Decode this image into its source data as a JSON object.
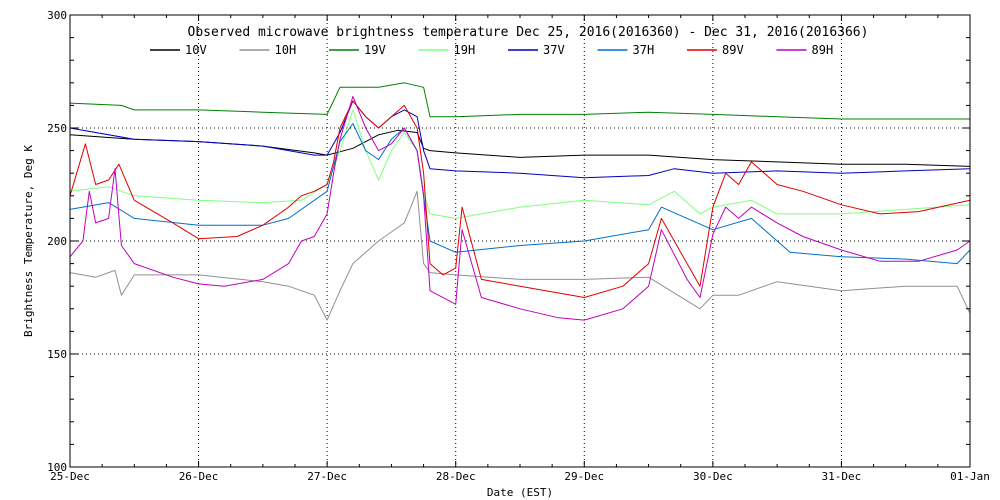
{
  "chart_data": {
    "type": "line",
    "title": "Observed microwave brightness temperature Dec 25, 2016(2016360) - Dec 31, 2016(2016366)",
    "xlabel": "Date (EST)",
    "ylabel": "Brightness Temperature, Deg K",
    "x_ticks": [
      "25-Dec",
      "26-Dec",
      "27-Dec",
      "28-Dec",
      "29-Dec",
      "30-Dec",
      "31-Dec",
      "01-Jan"
    ],
    "xlim": [
      0,
      7
    ],
    "ylim": [
      100,
      300
    ],
    "y_ticks": [
      100,
      150,
      200,
      250,
      300
    ],
    "grid": true,
    "legend_position": "top",
    "series": [
      {
        "name": "10V",
        "color": "#000000",
        "x": [
          0,
          0.5,
          1.0,
          1.5,
          1.9,
          2.0,
          2.2,
          2.4,
          2.55,
          2.7,
          2.75,
          2.8,
          3.0,
          3.5,
          4.0,
          4.5,
          5.0,
          5.5,
          6.0,
          6.5,
          7.0
        ],
        "y": [
          247,
          245,
          244,
          242,
          239,
          238,
          241,
          247,
          249,
          248,
          241,
          240,
          239,
          237,
          238,
          238,
          236,
          235,
          234,
          234,
          233
        ]
      },
      {
        "name": "10H",
        "color": "#909090",
        "x": [
          0,
          0.2,
          0.35,
          0.4,
          0.5,
          1.0,
          1.5,
          1.7,
          1.9,
          2.0,
          2.1,
          2.2,
          2.4,
          2.6,
          2.7,
          2.75,
          2.8,
          3.0,
          3.5,
          4.0,
          4.5,
          4.9,
          5.0,
          5.2,
          5.5,
          6.0,
          6.5,
          6.9,
          7.0
        ],
        "y": [
          186,
          184,
          187,
          176,
          185,
          185,
          182,
          180,
          176,
          165,
          178,
          190,
          200,
          208,
          222,
          190,
          186,
          185,
          183,
          183,
          184,
          170,
          176,
          176,
          182,
          178,
          180,
          180,
          168
        ]
      },
      {
        "name": "19V",
        "color": "#008000",
        "x": [
          0,
          0.4,
          0.5,
          1.0,
          1.5,
          2.0,
          2.1,
          2.4,
          2.6,
          2.75,
          2.8,
          3.0,
          3.5,
          4.0,
          4.5,
          5.0,
          5.5,
          6.0,
          6.5,
          7.0
        ],
        "y": [
          261,
          260,
          258,
          258,
          257,
          256,
          268,
          268,
          270,
          268,
          255,
          255,
          256,
          256,
          257,
          256,
          255,
          254,
          254,
          254
        ]
      },
      {
        "name": "19H",
        "color": "#80ff80",
        "x": [
          0,
          0.3,
          0.5,
          1.0,
          1.5,
          1.8,
          2.0,
          2.1,
          2.2,
          2.3,
          2.4,
          2.5,
          2.6,
          2.7,
          2.75,
          2.8,
          3.0,
          3.5,
          4.0,
          4.5,
          4.7,
          4.9,
          5.0,
          5.3,
          5.5,
          6.0,
          6.5,
          7.0
        ],
        "y": [
          222,
          224,
          220,
          218,
          217,
          218,
          225,
          240,
          258,
          240,
          227,
          240,
          248,
          240,
          222,
          212,
          210,
          215,
          218,
          216,
          222,
          212,
          215,
          218,
          212,
          212,
          214,
          216
        ]
      },
      {
        "name": "37V",
        "color": "#0000c0",
        "x": [
          0,
          0.5,
          1.0,
          1.5,
          1.9,
          2.0,
          2.1,
          2.2,
          2.3,
          2.4,
          2.5,
          2.6,
          2.7,
          2.75,
          2.8,
          3.0,
          3.5,
          4.0,
          4.5,
          4.7,
          5.0,
          5.5,
          6.0,
          6.5,
          7.0
        ],
        "y": [
          250,
          245,
          244,
          242,
          238,
          238,
          248,
          262,
          255,
          250,
          255,
          258,
          255,
          240,
          232,
          231,
          230,
          228,
          229,
          232,
          230,
          231,
          230,
          231,
          232
        ]
      },
      {
        "name": "37H",
        "color": "#0070d0",
        "x": [
          0,
          0.3,
          0.5,
          1.0,
          1.5,
          1.7,
          1.9,
          2.0,
          2.1,
          2.2,
          2.3,
          2.4,
          2.5,
          2.6,
          2.7,
          2.75,
          2.8,
          3.0,
          3.5,
          4.0,
          4.5,
          4.6,
          4.8,
          5.0,
          5.3,
          5.6,
          6.0,
          6.5,
          6.9,
          7.0
        ],
        "y": [
          214,
          217,
          210,
          207,
          207,
          210,
          218,
          222,
          244,
          252,
          240,
          236,
          245,
          250,
          240,
          220,
          200,
          195,
          198,
          200,
          205,
          215,
          210,
          205,
          210,
          195,
          193,
          192,
          190,
          196
        ]
      },
      {
        "name": "89V",
        "color": "#e00000",
        "x": [
          0,
          0.12,
          0.2,
          0.3,
          0.38,
          0.5,
          0.8,
          1.0,
          1.3,
          1.5,
          1.7,
          1.8,
          1.9,
          2.0,
          2.05,
          2.1,
          2.2,
          2.3,
          2.4,
          2.5,
          2.6,
          2.7,
          2.75,
          2.8,
          2.9,
          3.0,
          3.05,
          3.2,
          3.5,
          4.0,
          4.3,
          4.5,
          4.6,
          4.8,
          4.9,
          5.0,
          5.1,
          5.2,
          5.3,
          5.5,
          5.7,
          6.0,
          6.3,
          6.6,
          7.0
        ],
        "y": [
          220,
          243,
          225,
          227,
          234,
          218,
          208,
          201,
          202,
          207,
          215,
          220,
          222,
          225,
          235,
          250,
          262,
          255,
          250,
          255,
          260,
          250,
          230,
          190,
          185,
          188,
          215,
          183,
          180,
          175,
          180,
          190,
          210,
          190,
          180,
          215,
          230,
          225,
          235,
          225,
          222,
          216,
          212,
          213,
          218
        ]
      },
      {
        "name": "89H",
        "color": "#c000c0",
        "x": [
          0,
          0.1,
          0.15,
          0.2,
          0.3,
          0.35,
          0.4,
          0.5,
          0.8,
          1.0,
          1.2,
          1.5,
          1.7,
          1.8,
          1.9,
          2.0,
          2.05,
          2.1,
          2.2,
          2.3,
          2.4,
          2.5,
          2.6,
          2.7,
          2.75,
          2.8,
          3.0,
          3.05,
          3.2,
          3.5,
          3.8,
          4.0,
          4.3,
          4.5,
          4.6,
          4.8,
          4.9,
          5.0,
          5.1,
          5.2,
          5.3,
          5.5,
          5.7,
          6.0,
          6.3,
          6.6,
          6.9,
          7.0
        ],
        "y": [
          193,
          200,
          222,
          208,
          210,
          232,
          198,
          190,
          184,
          181,
          180,
          183,
          190,
          200,
          202,
          212,
          230,
          245,
          264,
          250,
          240,
          243,
          250,
          240,
          220,
          178,
          172,
          205,
          175,
          170,
          166,
          165,
          170,
          180,
          205,
          183,
          175,
          203,
          215,
          210,
          215,
          208,
          202,
          196,
          191,
          191,
          196,
          200
        ]
      }
    ]
  }
}
